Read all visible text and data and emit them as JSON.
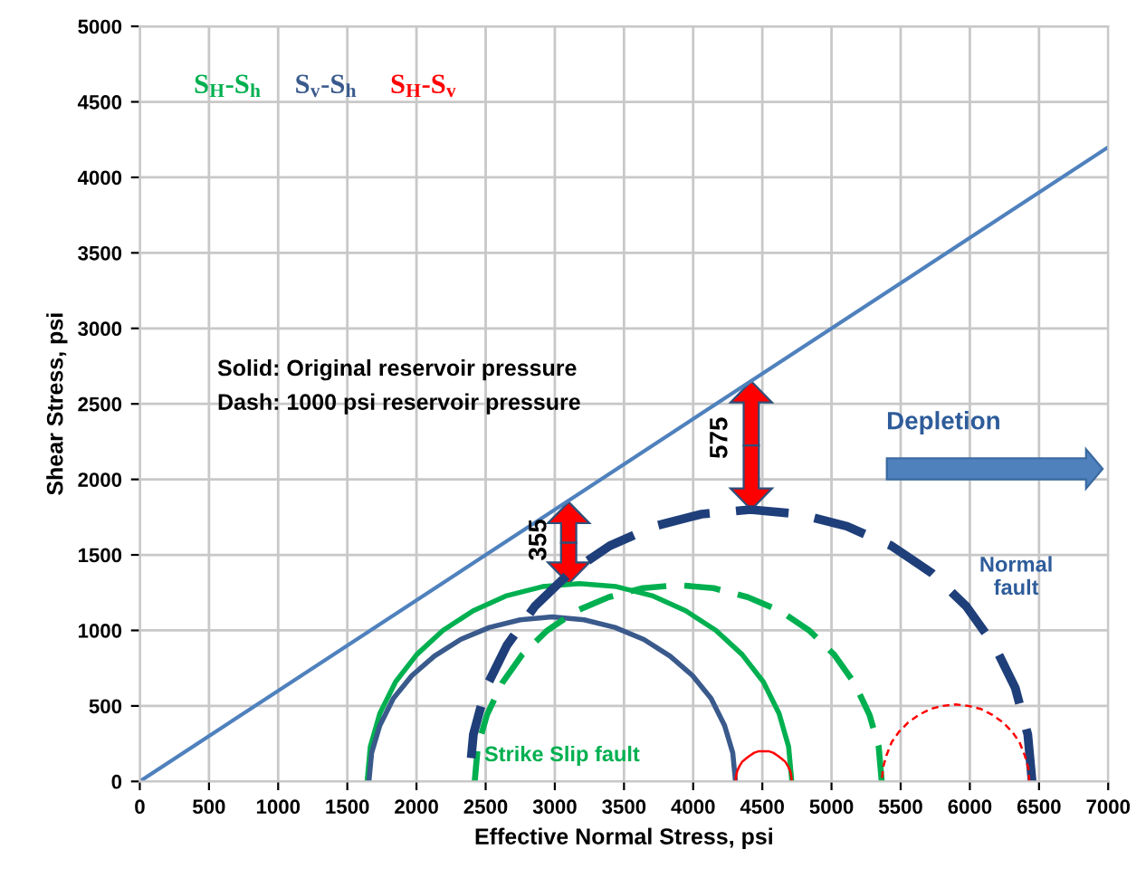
{
  "chart_data": {
    "type": "line",
    "xlabel": "Effective Normal Stress, psi",
    "ylabel": "Shear Stress, psi",
    "xlim": [
      0,
      7000
    ],
    "xticks": [
      0,
      500,
      1000,
      1500,
      2000,
      2500,
      3000,
      3500,
      4000,
      4500,
      5000,
      5500,
      6000,
      6500,
      7000
    ],
    "ylim": [
      0,
      5000
    ],
    "yticks": [
      0,
      500,
      1000,
      1500,
      2000,
      2500,
      3000,
      3500,
      4000,
      4500,
      5000
    ],
    "grid": true,
    "legend": "top left",
    "marker": "none",
    "series": [
      {
        "color": "#4f81bd",
        "line_style": "solid",
        "x": [
          0,
          7000
        ],
        "values": [
          0,
          4200
        ]
      },
      {
        "name": "S$_{H}$-S$_{h}$",
        "color": "#00b050",
        "line_style": "solid",
        "x": [
          4713,
          4690,
          4621,
          4507,
          4354,
          4165,
          3946,
          3703,
          3445,
          3178,
          2911,
          2653,
          2410,
          2191,
          2002,
          1849,
          1735,
          1666,
          1643
        ],
        "values": [
          0,
          230,
          450,
          660,
          840,
          1000,
          1130,
          1230,
          1290,
          1310,
          1290,
          1230,
          1130,
          1000,
          840,
          660,
          450,
          230,
          0
        ]
      },
      {
        "name": "S$_{v}$-S$_{h}$",
        "color": "#3a5a8c",
        "line_style": "solid",
        "x": [
          4306,
          4286,
          4227,
          4129,
          3996,
          3833,
          3644,
          3434,
          3212,
          2981,
          2750,
          2528,
          2318,
          2129,
          1966,
          1833,
          1735,
          1676,
          1656
        ],
        "values": [
          0,
          190,
          370,
          550,
          700,
          830,
          940,
          1020,
          1070,
          1090,
          1070,
          1020,
          940,
          830,
          700,
          550,
          370,
          190,
          0
        ]
      },
      {
        "name": "S$_{H}$-S$_{v}$",
        "color": "#ff0000",
        "line_style": "solid",
        "x": [
          4713,
          4710,
          4701,
          4686,
          4666,
          4640,
          4612,
          4579,
          4545,
          4510,
          4475,
          4441,
          4408,
          4380,
          4354,
          4334,
          4319,
          4310,
          4307
        ],
        "values": [
          0,
          30,
          70,
          100,
          130,
          150,
          170,
          190,
          200,
          200,
          200,
          190,
          170,
          150,
          130,
          100,
          70,
          30,
          0
        ]
      },
      {
        "color": "#00b050",
        "line_style": "dashed",
        "x": [
          5363,
          5341,
          5275,
          5166,
          5019,
          4838,
          4628,
          4395,
          4148,
          3892,
          3636,
          3389,
          3156,
          2946,
          2765,
          2618,
          2509,
          2443,
          2421
        ],
        "values": [
          0,
          230,
          440,
          650,
          840,
          1000,
          1130,
          1220,
          1280,
          1300,
          1280,
          1220,
          1130,
          1000,
          840,
          650,
          440,
          230,
          0
        ]
      },
      {
        "color": "#1f3f7a",
        "line_style": "dashed",
        "x": [
          6450,
          6419,
          6328,
          6177,
          5974,
          5724,
          5433,
          5111,
          4769,
          4415,
          4061,
          3719,
          3397,
          3106,
          2856,
          2653,
          2502,
          2411,
          2380
        ],
        "values": [
          0,
          310,
          620,
          900,
          1160,
          1380,
          1560,
          1690,
          1770,
          1800,
          1770,
          1690,
          1560,
          1380,
          1160,
          900,
          620,
          310,
          0
        ]
      },
      {
        "color": "#ff0000",
        "line_style": "dotted",
        "x": [
          6430,
          6422,
          6398,
          6359,
          6305,
          6240,
          6164,
          6079,
          5990,
          5897,
          5804,
          5715,
          5630,
          5554,
          5489,
          5435,
          5396,
          5372,
          5364
        ],
        "values": [
          0,
          90,
          170,
          260,
          330,
          390,
          440,
          480,
          500,
          510,
          500,
          480,
          440,
          390,
          330,
          260,
          170,
          90,
          0
        ]
      }
    ],
    "annotations": [
      "Solid: Original reservoir pressure",
      "Dash: 1000 psi reservoir pressure",
      "355",
      "575",
      "Depletion",
      "Normal\nfault",
      "Strike Slip fault"
    ]
  }
}
